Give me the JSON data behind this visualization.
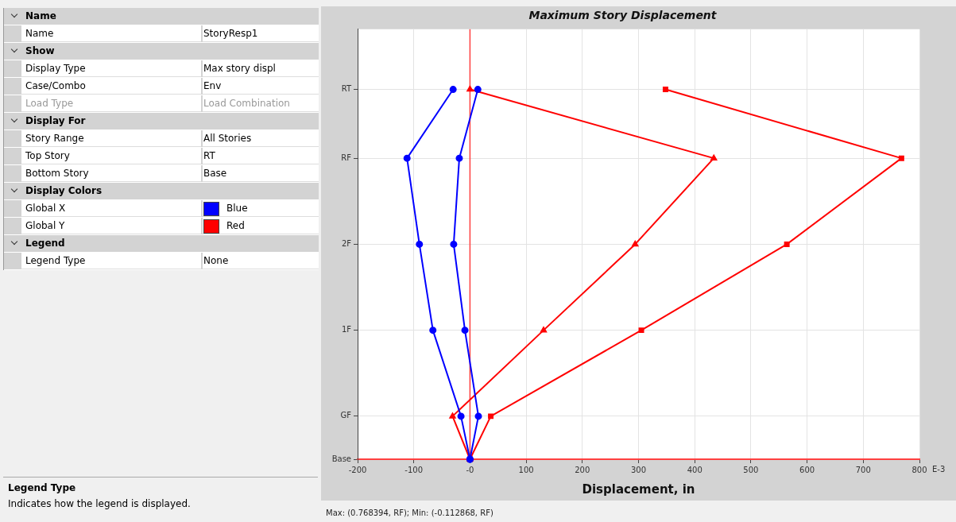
{
  "chart_data": [
    {
      "type": "line",
      "orientation": "horizontal",
      "title": "Maximum Story Displacement",
      "xlabel": "Displacement, in",
      "xlim": [
        -200,
        800
      ],
      "xticks": [
        -200,
        -100,
        {
          "value": 0,
          "label": "-0"
        },
        100,
        200,
        300,
        400,
        500,
        600,
        700,
        800
      ],
      "categories": [
        null,
        null,
        null,
        null,
        null,
        null,
        null,
        "RT",
        null,
        null,
        null,
        null,
        null,
        null,
        null,
        "RF",
        null,
        null,
        null,
        null,
        null,
        null,
        null,
        null,
        null,
        "2F",
        null,
        null,
        null,
        null,
        null,
        null,
        null,
        null,
        null,
        "1F",
        null,
        null,
        null,
        null,
        null,
        null,
        null,
        null,
        null,
        "GF",
        null,
        null,
        null,
        null,
        "Base"
      ],
      "grid": true,
      "legend": false,
      "series": [
        {
          "color": "#0000ff",
          "marker": "circle",
          "values": [
            null,
            null,
            null,
            null,
            null,
            null,
            null,
            -30,
            null,
            null,
            null,
            null,
            null,
            null,
            null,
            -112,
            null,
            null,
            null,
            null,
            null,
            null,
            null,
            null,
            null,
            -90,
            null,
            null,
            null,
            null,
            null,
            null,
            null,
            null,
            null,
            -66,
            null,
            null,
            null,
            null,
            null,
            null,
            null,
            null,
            null,
            -16,
            null,
            null,
            null,
            null,
            0
          ]
        },
        {
          "color": "#0000ff",
          "marker": "circle",
          "values": [
            null,
            null,
            null,
            null,
            null,
            null,
            null,
            14,
            null,
            null,
            null,
            null,
            null,
            null,
            null,
            -19,
            null,
            null,
            null,
            null,
            null,
            null,
            null,
            null,
            null,
            -29,
            null,
            null,
            null,
            null,
            null,
            null,
            null,
            null,
            null,
            -9,
            null,
            null,
            null,
            null,
            null,
            null,
            null,
            null,
            null,
            15,
            null,
            null,
            null,
            null,
            0
          ]
        },
        {
          "color": "#ff0000",
          "marker": "triangle",
          "values": [
            null,
            null,
            null,
            null,
            null,
            null,
            null,
            0,
            null,
            null,
            null,
            null,
            null,
            null,
            null,
            434,
            null,
            null,
            null,
            null,
            null,
            null,
            null,
            null,
            null,
            294,
            null,
            null,
            null,
            null,
            null,
            null,
            null,
            null,
            null,
            131,
            null,
            null,
            null,
            null,
            null,
            null,
            null,
            null,
            null,
            -31,
            null,
            null,
            null,
            null,
            0
          ]
        },
        {
          "color": "#ff0000",
          "marker": "square",
          "values": [
            null,
            null,
            null,
            null,
            null,
            null,
            null,
            348,
            null,
            null,
            null,
            null,
            null,
            null,
            null,
            768,
            null,
            null,
            null,
            null,
            null,
            null,
            null,
            null,
            null,
            564,
            null,
            null,
            null,
            null,
            null,
            null,
            null,
            null,
            null,
            305,
            null,
            null,
            null,
            null,
            null,
            null,
            null,
            null,
            null,
            37,
            null,
            null,
            null,
            null,
            0
          ]
        }
      ],
      "ref_lines": [
        {
          "axis": "x",
          "value": 0,
          "color": "#ff4040"
        }
      ],
      "annotations": [
        "E-3",
        "Max: (0.768394, RF);   Min: (-0.112868, RF)"
      ]
    },
    {
      "type": "other",
      "colors": [
        "#0000ff",
        "#ff0000"
      ],
      "annotations": [
        "Name",
        "Name",
        "StoryResp1",
        "Show",
        "Display Type",
        "Max story displ",
        "Case/Combo",
        "Env",
        "Load Type",
        "Load Combination",
        "Display For",
        "Story Range",
        "All Stories",
        "Top Story",
        "RT",
        "Bottom Story",
        "Base",
        "Display Colors",
        "Global X",
        "Blue",
        "Global Y",
        "Red",
        "Legend",
        "Legend Type",
        "None",
        "Legend Type",
        "Indicates how the legend is displayed."
      ]
    }
  ]
}
